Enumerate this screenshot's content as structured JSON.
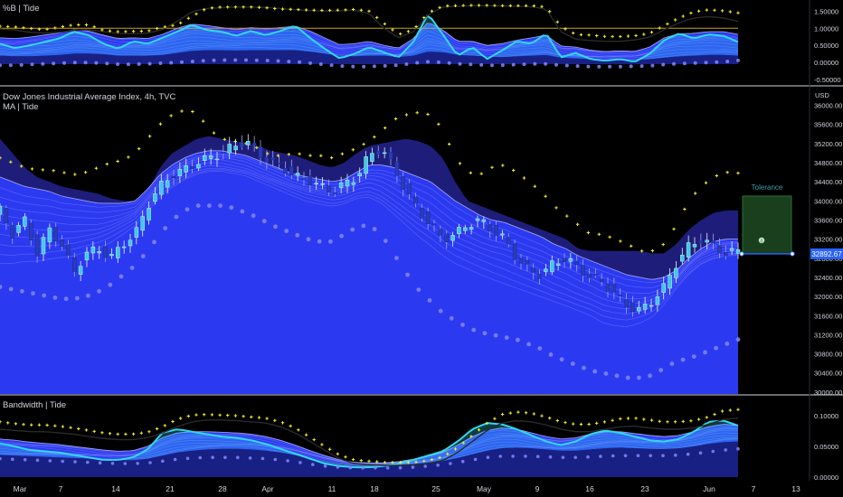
{
  "symbol": {
    "title": "Dow Jones Industrial Average Index, 4h, TVC",
    "currency": "USD",
    "last_price": "32892.67"
  },
  "panes": {
    "top_title": "%B | Tide",
    "main_ma_title": "MA | Tide",
    "bottom_title": "Bandwidth | Tide"
  },
  "tolerance_label": "Tolerance",
  "marker_label": "0",
  "colors": {
    "background": "#000000",
    "tide_fill": "#2b3af0",
    "tide_ribbon": "#8a8cff",
    "tide_dark": "#23238f",
    "cyan": "#2fd9f0",
    "yellow_plus": "#f5ef2a",
    "dots": "#8486ff",
    "up_candle": "#3fc9e6",
    "down_candle": "#2a3cb8",
    "price_label_bg": "#2962ff",
    "tolerance_fill": "#1d4a22",
    "tolerance_text": "#3f9ea8",
    "orange_line": "#c9a020"
  },
  "chart_data": [
    {
      "type": "line",
      "pane": "top",
      "title": "%B | Tide",
      "y_ticks": [
        "1.50000",
        "1.00000",
        "0.50000",
        "0.00000",
        "-0.50000"
      ],
      "y_tick_values": [
        1.5,
        1.0,
        0.5,
        0.0,
        -0.5
      ],
      "ylim": [
        -0.55,
        1.72
      ],
      "reference_line": 1.0,
      "upper_plus": [
        1.06,
        1.04,
        1.0,
        0.96,
        1.03,
        1.1,
        1.1,
        0.94,
        0.9,
        0.91,
        0.92,
        1.03,
        1.1,
        1.35,
        1.58,
        1.62,
        1.62,
        1.62,
        1.6,
        1.56,
        1.55,
        1.53,
        1.52,
        1.53,
        1.55,
        1.5,
        1.15,
        0.82,
        0.95,
        1.45,
        1.65,
        1.66,
        1.67,
        1.67,
        1.66,
        1.66,
        1.66,
        1.62,
        1.05,
        0.82,
        0.8,
        0.76,
        0.76,
        0.78,
        0.85,
        1.08,
        1.3,
        1.48,
        1.54,
        1.51,
        1.45
      ],
      "black_line": [
        0.98,
        0.95,
        0.88,
        0.86,
        0.88,
        0.94,
        0.96,
        0.9,
        0.85,
        0.84,
        0.86,
        0.96,
        1.2,
        1.48,
        1.58,
        1.6,
        1.62,
        1.62,
        1.61,
        1.58,
        1.54,
        1.52,
        1.5,
        1.51,
        1.53,
        1.44,
        1.0,
        0.72,
        0.9,
        1.4,
        1.62,
        1.64,
        1.66,
        1.66,
        1.65,
        1.64,
        1.63,
        1.56,
        0.9,
        0.68,
        0.64,
        0.62,
        0.62,
        0.66,
        0.74,
        0.96,
        1.16,
        1.3,
        1.34,
        1.3,
        1.2
      ],
      "cyan_line": [
        0.55,
        0.42,
        0.5,
        0.6,
        0.7,
        0.9,
        0.8,
        0.55,
        0.4,
        0.62,
        0.55,
        0.72,
        0.9,
        1.1,
        0.95,
        0.9,
        0.78,
        0.92,
        0.8,
        0.92,
        1.08,
        0.72,
        0.4,
        0.12,
        0.25,
        0.45,
        0.3,
        0.15,
        0.6,
        1.42,
        0.82,
        0.2,
        0.45,
        0.1,
        0.35,
        0.62,
        0.55,
        0.85,
        0.15,
        0.28,
        0.1,
        0.05,
        0.1,
        0.02,
        0.25,
        0.65,
        0.85,
        0.7,
        0.82,
        0.78,
        0.6
      ],
      "tide_top": [
        0.72,
        0.7,
        0.74,
        0.8,
        0.86,
        0.96,
        0.92,
        0.8,
        0.7,
        0.72,
        0.7,
        0.82,
        1.0,
        1.12,
        1.08,
        1.02,
        0.96,
        1.02,
        0.98,
        1.02,
        1.06,
        0.92,
        0.72,
        0.52,
        0.55,
        0.62,
        0.5,
        0.42,
        0.7,
        1.18,
        0.95,
        0.62,
        0.62,
        0.5,
        0.55,
        0.65,
        0.72,
        0.8,
        0.48,
        0.45,
        0.36,
        0.32,
        0.34,
        0.32,
        0.45,
        0.72,
        0.84,
        0.85,
        0.9,
        0.9,
        0.82
      ],
      "tide_bottom": [
        0.2,
        0.18,
        0.18,
        0.2,
        0.22,
        0.26,
        0.26,
        0.24,
        0.2,
        0.2,
        0.2,
        0.22,
        0.28,
        0.34,
        0.36,
        0.36,
        0.35,
        0.36,
        0.36,
        0.36,
        0.36,
        0.32,
        0.26,
        0.2,
        0.18,
        0.2,
        0.2,
        0.16,
        0.2,
        0.32,
        0.3,
        0.22,
        0.2,
        0.18,
        0.16,
        0.18,
        0.2,
        0.22,
        0.14,
        0.12,
        0.1,
        0.08,
        0.08,
        0.08,
        0.1,
        0.14,
        0.18,
        0.2,
        0.22,
        0.22,
        0.2
      ],
      "lower_dots": [
        -0.08,
        -0.08,
        -0.06,
        -0.04,
        -0.02,
        0.0,
        0.0,
        -0.02,
        -0.05,
        -0.05,
        -0.04,
        -0.02,
        0.0,
        0.03,
        0.06,
        0.07,
        0.07,
        0.07,
        0.06,
        0.04,
        0.02,
        -0.02,
        -0.06,
        -0.1,
        -0.12,
        -0.12,
        -0.1,
        -0.08,
        -0.02,
        0.02,
        0.0,
        -0.04,
        -0.06,
        -0.08,
        -0.08,
        -0.06,
        -0.04,
        -0.04,
        -0.08,
        -0.1,
        -0.12,
        -0.12,
        -0.12,
        -0.11,
        -0.1,
        -0.06,
        -0.03,
        -0.02,
        0.0,
        0.02,
        0.06
      ]
    },
    {
      "type": "candlestick",
      "pane": "main",
      "title": "Dow Jones Industrial Average Index, 4h, TVC",
      "y_ticks": [
        "36000.00",
        "35600.00",
        "35200.00",
        "34800.00",
        "34400.00",
        "34000.00",
        "33600.00",
        "33200.00",
        "32800.00",
        "32400.00",
        "32000.00",
        "31600.00",
        "31200.00",
        "30800.00",
        "30400.00",
        "30000.00"
      ],
      "y_tick_values": [
        36000,
        35600,
        35200,
        34800,
        34400,
        34000,
        33600,
        33200,
        32800,
        32400,
        32000,
        31600,
        31200,
        30800,
        30400,
        30000
      ],
      "ylim": [
        29960,
        36350
      ],
      "last_price": 32892.67,
      "close": [
        33800,
        33300,
        33600,
        32900,
        33400,
        33100,
        32500,
        32900,
        33000,
        32800,
        33100,
        33300,
        33900,
        34300,
        34550,
        34650,
        34800,
        34900,
        35000,
        35150,
        35250,
        35000,
        34800,
        34700,
        34500,
        34450,
        34300,
        34200,
        34350,
        34500,
        34950,
        35100,
        34700,
        34200,
        33800,
        33500,
        33200,
        33300,
        33500,
        33600,
        33400,
        33200,
        32800,
        32550,
        32450,
        32700,
        32800,
        32600,
        32400,
        32300,
        32050,
        31800,
        31700,
        31900,
        32200,
        32700,
        33050,
        33200,
        33050,
        32900,
        32950
      ],
      "upper_plus": [
        34900,
        34800,
        34700,
        34650,
        34650,
        34600,
        34550,
        34600,
        34700,
        34800,
        34850,
        35000,
        35300,
        35600,
        35800,
        35900,
        35850,
        35500,
        35300,
        35250,
        35200,
        35100,
        34950,
        34950,
        35000,
        34950,
        34950,
        34900,
        35000,
        35100,
        35250,
        35450,
        35700,
        35800,
        35850,
        35800,
        35500,
        34900,
        34600,
        34550,
        34700,
        34750,
        34600,
        34400,
        34200,
        33900,
        33700,
        33500,
        33300,
        33300,
        33200,
        33100,
        32950,
        32950,
        33100,
        33500,
        34000,
        34300,
        34500,
        34600,
        34580
      ],
      "upper_band": [
        35300,
        35000,
        34700,
        34500,
        34400,
        34300,
        34250,
        34200,
        34150,
        34050,
        34000,
        34000,
        34200,
        34700,
        35000,
        35150,
        35300,
        35350,
        35300,
        35250,
        35200,
        35150,
        35050,
        35000,
        34950,
        34850,
        34750,
        34700,
        34800,
        35000,
        35150,
        35200,
        35250,
        35300,
        35250,
        35150,
        34900,
        34400,
        34000,
        33900,
        33800,
        33700,
        33600,
        33500,
        33400,
        33300,
        33200,
        33000,
        32950,
        32950,
        32950,
        32950,
        32950,
        32900,
        32900,
        33100,
        33400,
        33600,
        33750,
        33800,
        33800
      ],
      "tide_top": [
        34500,
        34400,
        34300,
        34250,
        34200,
        34100,
        34050,
        34000,
        33950,
        33950,
        33950,
        34000,
        34250,
        34550,
        34750,
        34900,
        35000,
        35050,
        35050,
        35000,
        34950,
        34850,
        34750,
        34650,
        34550,
        34500,
        34450,
        34400,
        34450,
        34600,
        34750,
        34750,
        34700,
        34600,
        34500,
        34400,
        34200,
        34000,
        33850,
        33700,
        33600,
        33550,
        33450,
        33350,
        33250,
        33100,
        33000,
        32850,
        32750,
        32650,
        32550,
        32450,
        32400,
        32350,
        32400,
        32550,
        32800,
        33000,
        33150,
        33200,
        33200
      ],
      "tide_bottom": [
        32500,
        32500,
        32550,
        32550,
        32600,
        32650,
        32700,
        32800,
        32900,
        33050,
        33250,
        33450,
        33750,
        34050,
        34250,
        34400,
        34500,
        34550,
        34550,
        34500,
        34450,
        34350,
        34250,
        34150,
        34050,
        33950,
        33900,
        33850,
        33900,
        34000,
        34000,
        33850,
        33600,
        33350,
        33100,
        32900,
        32700,
        32550,
        32450,
        32350,
        32250,
        32150,
        32050,
        31950,
        31850,
        31750,
        31650,
        31550,
        31450,
        31300,
        31250,
        31250,
        31350,
        31500,
        31800,
        32150,
        32450,
        32650,
        32750,
        32800,
        32800
      ],
      "lower_dots": [
        32200,
        32150,
        32100,
        32050,
        32000,
        31950,
        31950,
        32000,
        32100,
        32250,
        32450,
        32650,
        32950,
        33300,
        33600,
        33800,
        33900,
        33900,
        33900,
        33850,
        33750,
        33650,
        33500,
        33400,
        33300,
        33200,
        33150,
        33150,
        33300,
        33450,
        33500,
        33300,
        32900,
        32500,
        32150,
        31900,
        31650,
        31500,
        31350,
        31250,
        31200,
        31150,
        31100,
        31000,
        30900,
        30750,
        30650,
        30550,
        30450,
        30400,
        30350,
        30300,
        30300,
        30350,
        30500,
        30650,
        30700,
        30800,
        30900,
        31000,
        31100
      ],
      "tolerance_band": {
        "lower": 32892.67,
        "upper": 34100
      }
    },
    {
      "type": "line",
      "pane": "bottom",
      "title": "Bandwidth | Tide",
      "y_ticks": [
        "0.10000",
        "0.05000",
        "0.00000"
      ],
      "y_tick_values": [
        0.1,
        0.05,
        0.0
      ],
      "ylim": [
        -0.003,
        0.128
      ],
      "upper_plus": [
        0.09,
        0.087,
        0.085,
        0.085,
        0.083,
        0.08,
        0.076,
        0.072,
        0.07,
        0.07,
        0.073,
        0.082,
        0.094,
        0.101,
        0.102,
        0.101,
        0.1,
        0.098,
        0.096,
        0.09,
        0.08,
        0.065,
        0.05,
        0.036,
        0.028,
        0.026,
        0.024,
        0.024,
        0.024,
        0.027,
        0.033,
        0.048,
        0.068,
        0.088,
        0.102,
        0.106,
        0.104,
        0.098,
        0.09,
        0.086,
        0.086,
        0.09,
        0.095,
        0.096,
        0.093,
        0.09,
        0.09,
        0.092,
        0.098,
        0.108,
        0.11
      ],
      "black_line": [
        0.078,
        0.076,
        0.074,
        0.074,
        0.072,
        0.07,
        0.066,
        0.063,
        0.061,
        0.061,
        0.064,
        0.072,
        0.082,
        0.09,
        0.093,
        0.093,
        0.092,
        0.09,
        0.088,
        0.082,
        0.072,
        0.058,
        0.044,
        0.03,
        0.022,
        0.02,
        0.019,
        0.019,
        0.019,
        0.022,
        0.027,
        0.04,
        0.058,
        0.076,
        0.088,
        0.092,
        0.09,
        0.085,
        0.078,
        0.074,
        0.074,
        0.078,
        0.082,
        0.083,
        0.08,
        0.078,
        0.078,
        0.08,
        0.086,
        0.094,
        0.096
      ],
      "cyan_line": [
        0.055,
        0.05,
        0.044,
        0.042,
        0.04,
        0.036,
        0.032,
        0.028,
        0.028,
        0.032,
        0.045,
        0.072,
        0.078,
        0.074,
        0.07,
        0.066,
        0.064,
        0.06,
        0.054,
        0.046,
        0.038,
        0.03,
        0.022,
        0.018,
        0.016,
        0.016,
        0.018,
        0.022,
        0.028,
        0.035,
        0.042,
        0.058,
        0.078,
        0.088,
        0.086,
        0.078,
        0.068,
        0.058,
        0.052,
        0.058,
        0.07,
        0.076,
        0.072,
        0.066,
        0.06,
        0.058,
        0.062,
        0.074,
        0.09,
        0.092,
        0.084
      ],
      "tide_top": [
        0.062,
        0.06,
        0.057,
        0.055,
        0.053,
        0.05,
        0.047,
        0.044,
        0.042,
        0.043,
        0.05,
        0.064,
        0.072,
        0.074,
        0.074,
        0.073,
        0.072,
        0.07,
        0.066,
        0.06,
        0.052,
        0.043,
        0.035,
        0.028,
        0.024,
        0.023,
        0.023,
        0.025,
        0.029,
        0.034,
        0.04,
        0.052,
        0.066,
        0.076,
        0.08,
        0.078,
        0.072,
        0.066,
        0.062,
        0.064,
        0.07,
        0.074,
        0.074,
        0.071,
        0.068,
        0.066,
        0.068,
        0.074,
        0.082,
        0.086,
        0.084
      ],
      "tide_bottom": [
        0.036,
        0.035,
        0.034,
        0.033,
        0.032,
        0.031,
        0.03,
        0.029,
        0.028,
        0.028,
        0.03,
        0.035,
        0.04,
        0.043,
        0.045,
        0.046,
        0.046,
        0.045,
        0.043,
        0.04,
        0.036,
        0.031,
        0.026,
        0.022,
        0.02,
        0.019,
        0.019,
        0.02,
        0.021,
        0.023,
        0.026,
        0.031,
        0.037,
        0.043,
        0.047,
        0.048,
        0.047,
        0.045,
        0.043,
        0.043,
        0.045,
        0.047,
        0.048,
        0.047,
        0.046,
        0.046,
        0.047,
        0.05,
        0.054,
        0.057,
        0.058
      ],
      "lower_dots": [
        0.03,
        0.029,
        0.028,
        0.027,
        0.026,
        0.025,
        0.024,
        0.023,
        0.022,
        0.022,
        0.023,
        0.026,
        0.029,
        0.031,
        0.032,
        0.032,
        0.032,
        0.031,
        0.03,
        0.028,
        0.025,
        0.021,
        0.018,
        0.016,
        0.015,
        0.015,
        0.015,
        0.015,
        0.016,
        0.018,
        0.02,
        0.024,
        0.028,
        0.032,
        0.034,
        0.034,
        0.034,
        0.033,
        0.032,
        0.032,
        0.033,
        0.034,
        0.035,
        0.035,
        0.035,
        0.035,
        0.036,
        0.038,
        0.041,
        0.044,
        0.046
      ]
    }
  ],
  "x_axis": {
    "labels": [
      "Mar",
      "7",
      "14",
      "21",
      "28",
      "Apr",
      "11",
      "18",
      "25",
      "May",
      "9",
      "16",
      "23",
      "Jun",
      "7",
      "13"
    ]
  }
}
